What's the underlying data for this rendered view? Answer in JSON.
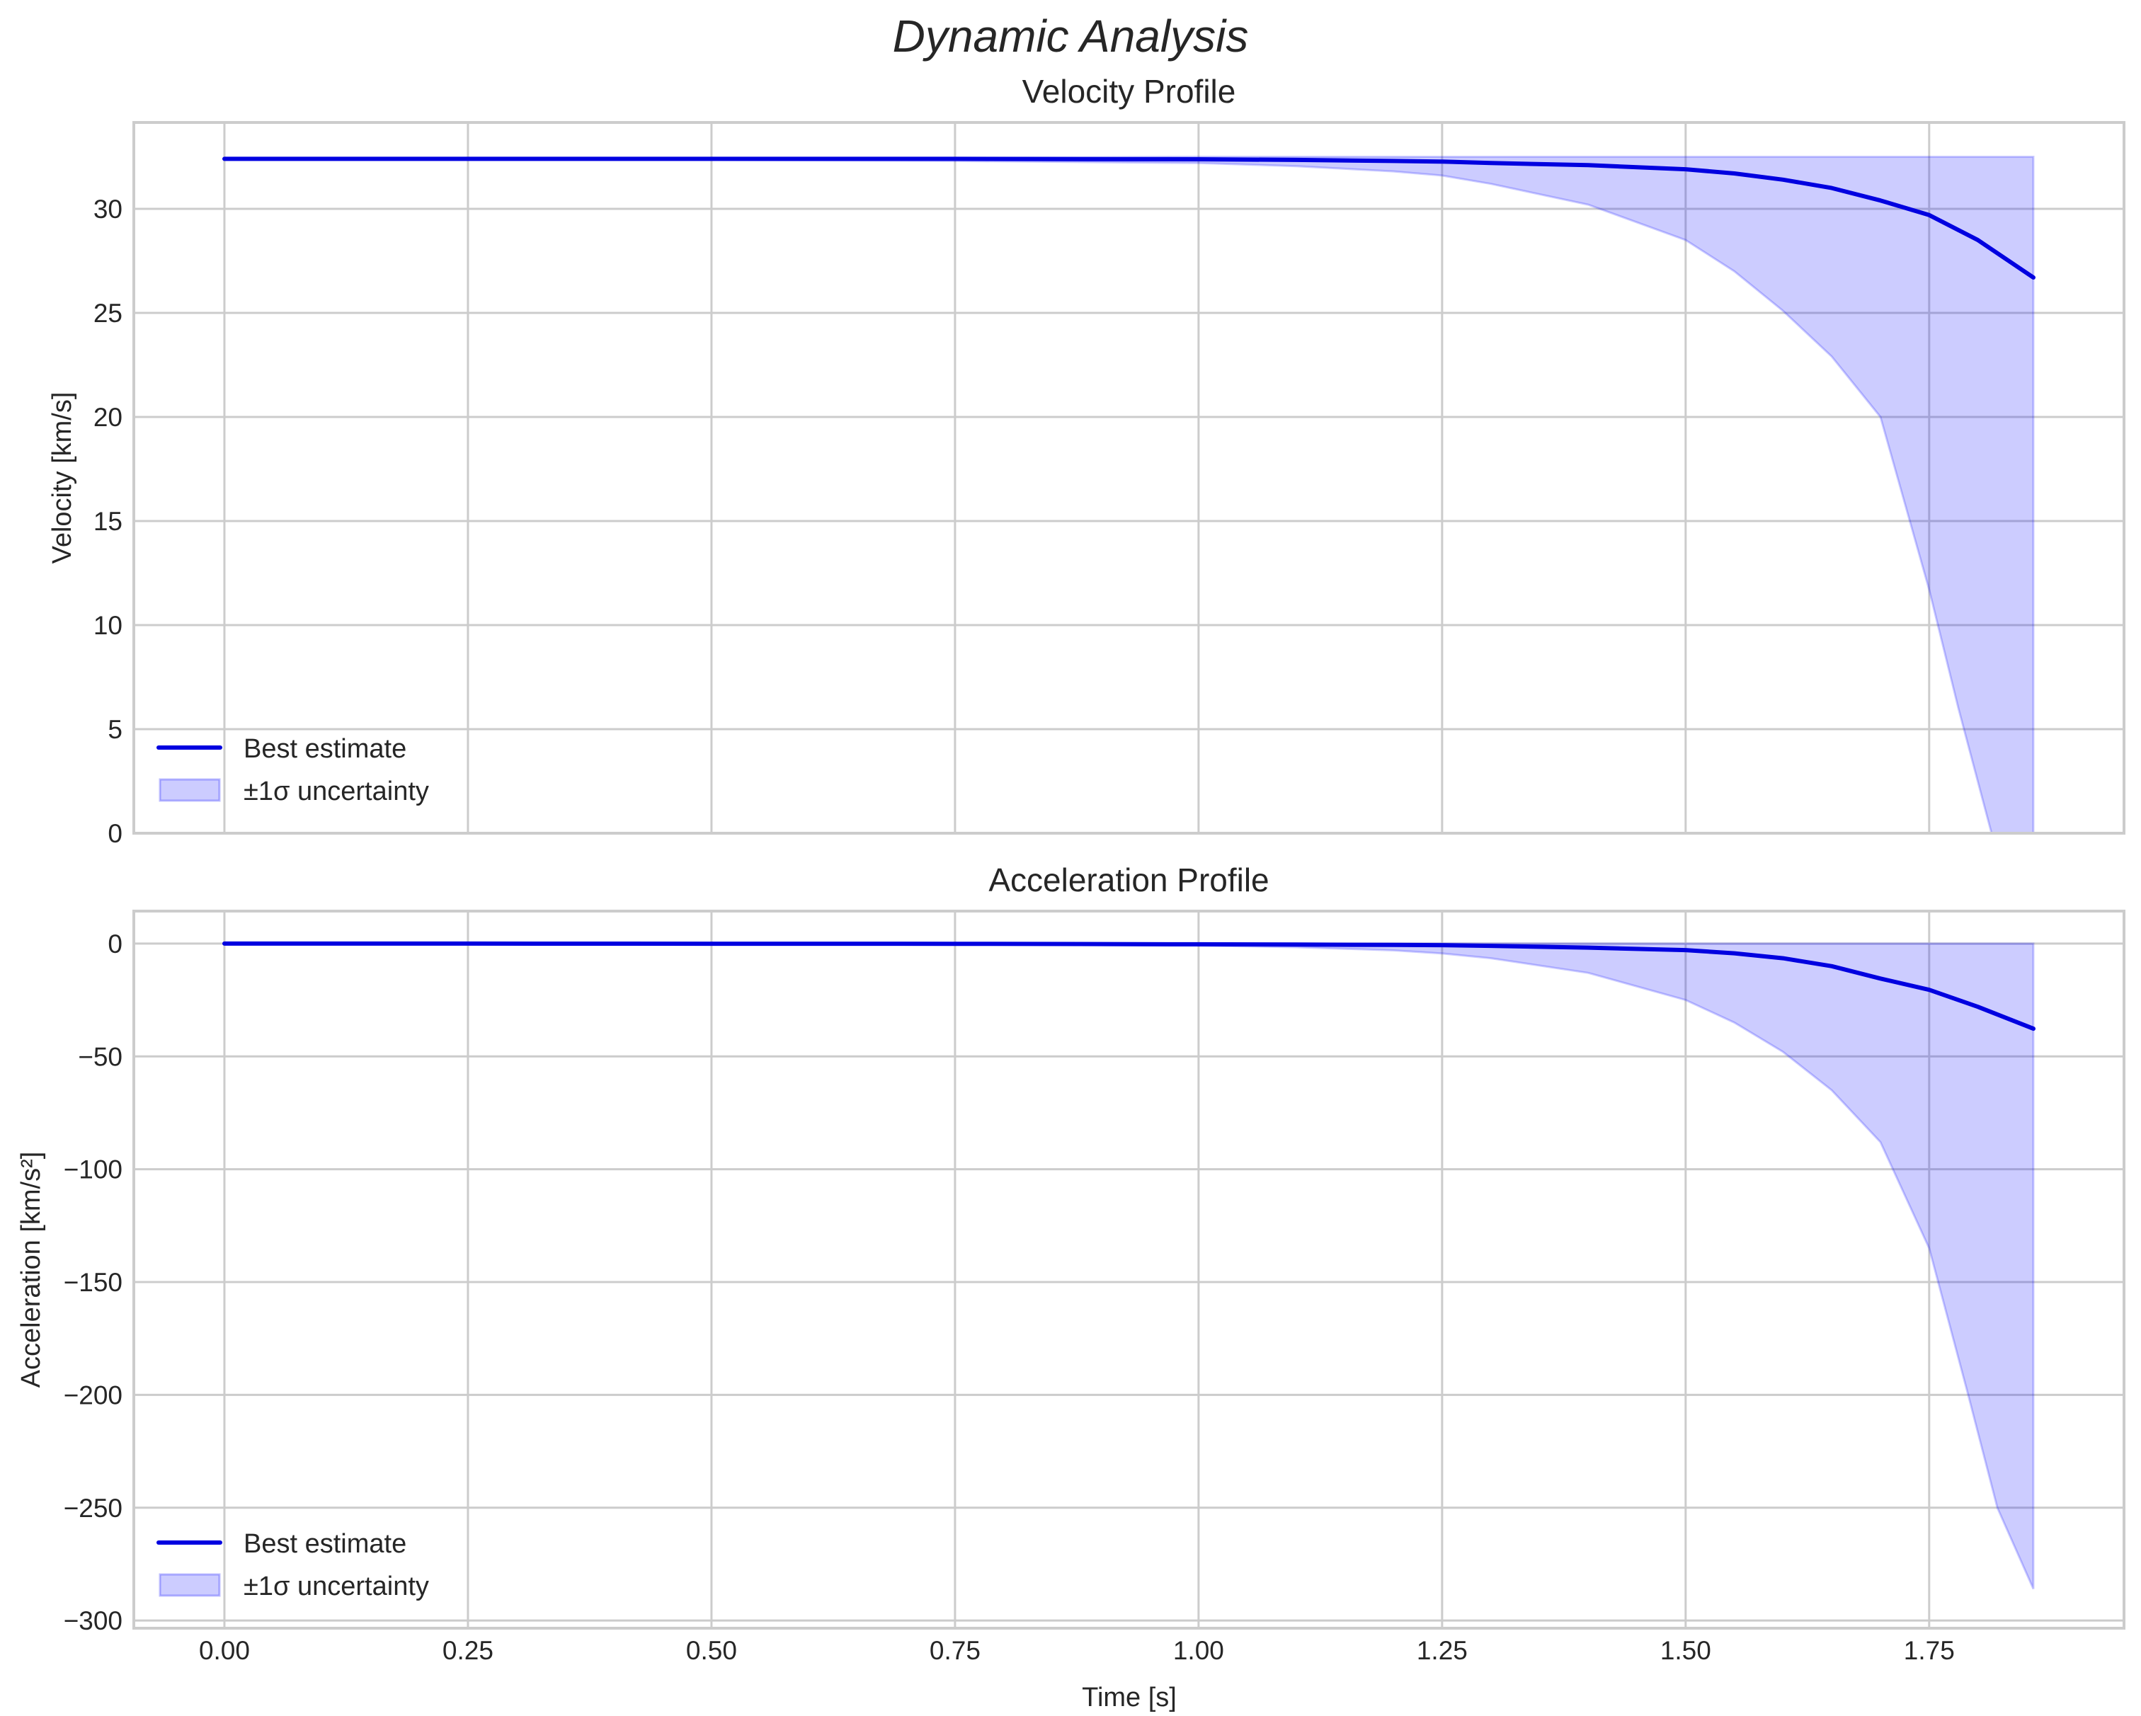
{
  "figure": {
    "suptitle": "Dynamic Analysis",
    "xlabel": "Time [s]"
  },
  "colors": {
    "line": "#0000e0",
    "band_fill": "#0000ff",
    "band_alpha": 0.2,
    "grid": "#cccccc",
    "spine": "#cccccc",
    "text": "#262626"
  },
  "legend": {
    "line_label": "Best estimate",
    "band_label": "±1σ uncertainty"
  },
  "chart_data": [
    {
      "type": "line",
      "title": "Velocity Profile",
      "xlabel": "",
      "ylabel": "Velocity [km/s]",
      "xlim": [
        -0.093,
        1.95
      ],
      "ylim": [
        0,
        34.15
      ],
      "grid": true,
      "legend_position": "lower left",
      "xticks": [
        0.0,
        0.25,
        0.5,
        0.75,
        1.0,
        1.25,
        1.5,
        1.75
      ],
      "xtick_labels": [
        "0.00",
        "0.25",
        "0.50",
        "0.75",
        "1.00",
        "1.25",
        "1.50",
        "1.75"
      ],
      "yticks": [
        0,
        5,
        10,
        15,
        20,
        25,
        30
      ],
      "ytick_labels": [
        "0",
        "5",
        "10",
        "15",
        "20",
        "25",
        "30"
      ],
      "series": [
        {
          "name": "Best estimate",
          "kind": "line",
          "x": [
            0.0,
            0.25,
            0.5,
            0.75,
            1.0,
            1.1,
            1.2,
            1.25,
            1.3,
            1.4,
            1.5,
            1.55,
            1.6,
            1.65,
            1.7,
            1.75,
            1.8,
            1.857
          ],
          "y": [
            32.4,
            32.4,
            32.4,
            32.4,
            32.38,
            32.35,
            32.3,
            32.27,
            32.2,
            32.1,
            31.9,
            31.7,
            31.4,
            31.0,
            30.4,
            29.7,
            28.5,
            26.7
          ]
        },
        {
          "name": "±1σ uncertainty",
          "kind": "band",
          "x": [
            0.0,
            0.25,
            0.5,
            0.75,
            1.0,
            1.1,
            1.2,
            1.25,
            1.3,
            1.4,
            1.5,
            1.55,
            1.6,
            1.65,
            1.7,
            1.75,
            1.78,
            1.814,
            1.857
          ],
          "lower": [
            32.35,
            32.35,
            32.35,
            32.3,
            32.2,
            32.05,
            31.8,
            31.6,
            31.2,
            30.2,
            28.5,
            27.0,
            25.1,
            22.9,
            20.0,
            11.7,
            6.0,
            0.0,
            -8.0
          ],
          "upper": [
            32.45,
            32.45,
            32.45,
            32.45,
            32.5,
            32.5,
            32.5,
            32.5,
            32.5,
            32.5,
            32.5,
            32.5,
            32.5,
            32.5,
            32.5,
            32.5,
            32.5,
            32.5,
            32.5
          ]
        }
      ]
    },
    {
      "type": "line",
      "title": "Acceleration Profile",
      "xlabel": "Time [s]",
      "ylabel": "Acceleration [km/s²]",
      "xlim": [
        -0.093,
        1.95
      ],
      "ylim": [
        -303.4,
        14.4
      ],
      "grid": true,
      "legend_position": "lower left",
      "xticks": [
        0.0,
        0.25,
        0.5,
        0.75,
        1.0,
        1.25,
        1.5,
        1.75
      ],
      "xtick_labels": [
        "0.00",
        "0.25",
        "0.50",
        "0.75",
        "1.00",
        "1.25",
        "1.50",
        "1.75"
      ],
      "yticks": [
        0,
        -50,
        -100,
        -150,
        -200,
        -250,
        -300
      ],
      "ytick_labels": [
        "0",
        "−50",
        "−100",
        "−150",
        "−200",
        "−250",
        "−300"
      ],
      "series": [
        {
          "name": "Best estimate",
          "kind": "line",
          "x": [
            0.0,
            0.25,
            0.5,
            0.75,
            1.0,
            1.1,
            1.2,
            1.25,
            1.3,
            1.4,
            1.5,
            1.55,
            1.6,
            1.65,
            1.7,
            1.75,
            1.8,
            1.857
          ],
          "y": [
            0.0,
            0.0,
            -0.05,
            -0.1,
            -0.3,
            -0.45,
            -0.6,
            -0.7,
            -1.0,
            -1.8,
            -2.9,
            -4.3,
            -6.5,
            -10.0,
            -15.5,
            -20.5,
            -28.0,
            -37.7
          ]
        },
        {
          "name": "±1σ uncertainty",
          "kind": "band",
          "x": [
            0.0,
            0.25,
            0.5,
            0.75,
            1.0,
            1.1,
            1.2,
            1.25,
            1.3,
            1.4,
            1.5,
            1.55,
            1.6,
            1.65,
            1.7,
            1.75,
            1.79,
            1.82,
            1.857
          ],
          "lower": [
            0.0,
            -0.05,
            -0.1,
            -0.3,
            -0.9,
            -1.6,
            -3.0,
            -4.4,
            -6.5,
            -13.0,
            -25.0,
            -35.0,
            -48.0,
            -65.0,
            -88.0,
            -135.0,
            -200.0,
            -250.0,
            -286.0
          ],
          "upper": [
            0.0,
            0.0,
            0.0,
            0.0,
            0.0,
            0.0,
            0.0,
            0.0,
            0.0,
            0.0,
            0.0,
            0.0,
            0.0,
            0.0,
            0.0,
            0.0,
            0.0,
            0.0,
            0.0
          ]
        }
      ]
    }
  ]
}
